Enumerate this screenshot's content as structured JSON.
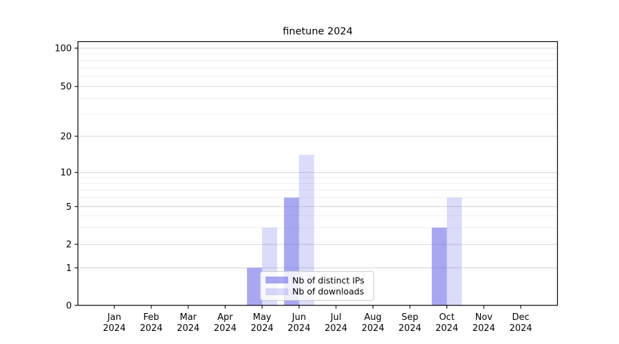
{
  "chart_data": {
    "type": "bar",
    "title": "finetune 2024",
    "categories": [
      "Jan 2024",
      "Feb 2024",
      "Mar 2024",
      "Apr 2024",
      "May 2024",
      "Jun 2024",
      "Jul 2024",
      "Aug 2024",
      "Sep 2024",
      "Oct 2024",
      "Nov 2024",
      "Dec 2024"
    ],
    "series": [
      {
        "name": "Nb of distinct IPs",
        "color": "#a9a9f0",
        "fill": "rgba(85,85,230,0.51)",
        "values": [
          0,
          0,
          0,
          0,
          1,
          6,
          0,
          0,
          0,
          3,
          0,
          0
        ]
      },
      {
        "name": "Nb of downloads",
        "color": "#dcdcf7",
        "fill": "rgba(85,85,230,0.21)",
        "values": [
          0,
          0,
          0,
          0,
          3,
          14,
          0,
          0,
          0,
          6,
          0,
          0
        ]
      }
    ],
    "y_axis": {
      "scale": "symlog",
      "ticks": [
        0,
        1,
        2,
        5,
        10,
        20,
        50,
        100
      ],
      "minor_ticks": [
        3,
        4,
        6,
        7,
        8,
        9,
        30,
        40,
        60,
        70,
        80,
        90
      ],
      "range": [
        0,
        110
      ]
    },
    "x_axis": {
      "label_line2": "2024"
    },
    "legend": {
      "items": [
        "Nb of distinct IPs",
        "Nb of downloads"
      ],
      "position": "lower center"
    },
    "grid": "horizontal major+minor",
    "xlabel": "",
    "ylabel": ""
  },
  "colors": {
    "background": "#ffffff",
    "grid_major": "#d4d4d4",
    "grid_minor": "#efefef",
    "axis": "#000000",
    "legend_border": "#cccccc",
    "legend_background": "rgba(255,255,255,0.8)"
  }
}
